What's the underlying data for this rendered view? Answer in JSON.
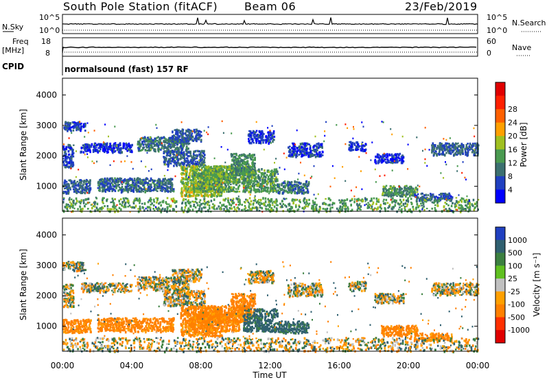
{
  "header": {
    "station": "South Pole Station (fitACF)",
    "beam": "Beam 06",
    "date": "23/Feb/2019"
  },
  "noise_panel": {
    "left_label": "N.Sky",
    "left_tick_top": "10^5",
    "left_tick_bottom": "10^0",
    "right_label": "N.Search",
    "right_tick_top": "10^5",
    "right_tick_bottom": "10^0"
  },
  "freq_panel": {
    "left_label_line1": "Freq",
    "left_label_line2": "[MHz]",
    "left_tick_top": "18",
    "left_tick_bottom": "8",
    "right_label": "Nave",
    "right_tick_top": "60",
    "right_tick_bottom": "0"
  },
  "cpid": {
    "label": "CPID",
    "value": "normalsound (fast) 157 RF"
  },
  "colors": {
    "power_scale": [
      "#0000ff",
      "#2040c0",
      "#3c7070",
      "#4a9a50",
      "#a0c020",
      "#ffa000",
      "#ff6000",
      "#ff2000",
      "#e00000"
    ],
    "velocity_scale": [
      "#2040c0",
      "#306070",
      "#3c8040",
      "#60c020",
      "#c0c0c0",
      "#ffa000",
      "#ff8000",
      "#ff3000",
      "#e00000"
    ]
  },
  "chart_data": [
    {
      "type": "heatmap",
      "name": "power",
      "ylabel": "Slant Range [km]",
      "ylim": [
        180,
        4550
      ],
      "yticks": [
        "1000",
        "2000",
        "3000",
        "4000"
      ],
      "xlim": [
        "00:00",
        "24:00"
      ],
      "colorbar": {
        "label": "Power [dB]",
        "range": [
          0,
          32
        ],
        "ticks": [
          "4",
          "8",
          "12",
          "16",
          "20",
          "24",
          "28"
        ]
      },
      "regions": [
        {
          "t": [
            0.0,
            1.3
          ],
          "r": [
            2850,
            3150
          ],
          "level": 6
        },
        {
          "t": [
            0.0,
            0.6
          ],
          "r": [
            1650,
            2400
          ],
          "level": 6
        },
        {
          "t": [
            0.0,
            1.6
          ],
          "r": [
            800,
            1250
          ],
          "level": 8
        },
        {
          "t": [
            1.0,
            4.0
          ],
          "r": [
            2150,
            2450
          ],
          "level": 5
        },
        {
          "t": [
            2.0,
            6.4
          ],
          "r": [
            850,
            1300
          ],
          "level": 9
        },
        {
          "t": [
            4.3,
            7.3
          ],
          "r": [
            2200,
            2650
          ],
          "level": 10
        },
        {
          "t": [
            6.3,
            8.0
          ],
          "r": [
            2500,
            2900
          ],
          "level": 8
        },
        {
          "t": [
            5.8,
            8.2
          ],
          "r": [
            1700,
            2200
          ],
          "level": 8
        },
        {
          "t": [
            6.8,
            9.2
          ],
          "r": [
            700,
            1700
          ],
          "level": 17
        },
        {
          "t": [
            7.5,
            10.2
          ],
          "r": [
            850,
            1500
          ],
          "level": 14
        },
        {
          "t": [
            8.2,
            10.8
          ],
          "r": [
            1150,
            1700
          ],
          "level": 15
        },
        {
          "t": [
            9.7,
            11.1
          ],
          "r": [
            1400,
            2100
          ],
          "level": 12
        },
        {
          "t": [
            10.4,
            12.4
          ],
          "r": [
            850,
            1600
          ],
          "level": 13
        },
        {
          "t": [
            10.7,
            12.2
          ],
          "r": [
            2450,
            2850
          ],
          "level": 6
        },
        {
          "t": [
            12.4,
            14.2
          ],
          "r": [
            800,
            1200
          ],
          "level": 10
        },
        {
          "t": [
            13.0,
            15.0
          ],
          "r": [
            2000,
            2450
          ],
          "level": 6
        },
        {
          "t": [
            16.5,
            17.5
          ],
          "r": [
            2200,
            2500
          ],
          "level": 5
        },
        {
          "t": [
            18.0,
            19.7
          ],
          "r": [
            1800,
            2100
          ],
          "level": 5
        },
        {
          "t": [
            18.4,
            20.5
          ],
          "r": [
            700,
            1050
          ],
          "level": 13
        },
        {
          "t": [
            20.3,
            22.5
          ],
          "r": [
            550,
            800
          ],
          "level": 7
        },
        {
          "t": [
            21.3,
            24.0
          ],
          "r": [
            2050,
            2450
          ],
          "level": 8
        },
        {
          "t": [
            0.0,
            24.0
          ],
          "r": [
            200,
            650
          ],
          "level": 14
        }
      ]
    },
    {
      "type": "heatmap",
      "name": "velocity",
      "ylabel": "Slant Range [km]",
      "ylim": [
        180,
        4550
      ],
      "yticks": [
        "1000",
        "2000",
        "3000",
        "4000"
      ],
      "xlim": [
        "00:00",
        "24:00"
      ],
      "xlabel": "Time UT",
      "xticks": [
        "00:00",
        "04:00",
        "08:00",
        "12:00",
        "16:00",
        "20:00",
        "00:00"
      ],
      "colorbar": {
        "label": "Velocity [m s⁻¹]",
        "ticks": [
          "1000",
          "500",
          "100",
          "25",
          "-25",
          "-100",
          "-500",
          "-1000"
        ]
      },
      "regions": [
        {
          "t": [
            0.0,
            1.3
          ],
          "r": [
            2850,
            3150
          ],
          "v": 0
        },
        {
          "t": [
            0.0,
            0.6
          ],
          "r": [
            1650,
            2400
          ],
          "v": 0
        },
        {
          "t": [
            0.0,
            1.6
          ],
          "r": [
            800,
            1250
          ],
          "v": -200
        },
        {
          "t": [
            1.0,
            4.0
          ],
          "r": [
            2150,
            2450
          ],
          "v": 0
        },
        {
          "t": [
            2.0,
            6.4
          ],
          "r": [
            850,
            1300
          ],
          "v": -200
        },
        {
          "t": [
            4.3,
            7.3
          ],
          "r": [
            2200,
            2650
          ],
          "v": 0
        },
        {
          "t": [
            6.3,
            8.0
          ],
          "r": [
            2500,
            2900
          ],
          "v": 0
        },
        {
          "t": [
            5.8,
            8.2
          ],
          "r": [
            1700,
            2200
          ],
          "v": 0
        },
        {
          "t": [
            6.8,
            9.2
          ],
          "r": [
            700,
            1700
          ],
          "v": -200
        },
        {
          "t": [
            7.5,
            10.2
          ],
          "r": [
            850,
            1500
          ],
          "v": -200
        },
        {
          "t": [
            8.2,
            10.8
          ],
          "r": [
            1150,
            1700
          ],
          "v": -200
        },
        {
          "t": [
            9.7,
            11.1
          ],
          "r": [
            1400,
            2100
          ],
          "v": -200
        },
        {
          "t": [
            10.4,
            12.4
          ],
          "r": [
            850,
            1600
          ],
          "v": 200
        },
        {
          "t": [
            10.7,
            12.2
          ],
          "r": [
            2450,
            2850
          ],
          "v": 0
        },
        {
          "t": [
            12.4,
            14.2
          ],
          "r": [
            800,
            1200
          ],
          "v": 200
        },
        {
          "t": [
            13.0,
            15.0
          ],
          "r": [
            2000,
            2450
          ],
          "v": 0
        },
        {
          "t": [
            16.5,
            17.5
          ],
          "r": [
            2200,
            2500
          ],
          "v": 0
        },
        {
          "t": [
            18.0,
            19.7
          ],
          "r": [
            1800,
            2100
          ],
          "v": 0
        },
        {
          "t": [
            18.4,
            20.5
          ],
          "r": [
            700,
            1050
          ],
          "v": -200
        },
        {
          "t": [
            20.3,
            22.5
          ],
          "r": [
            550,
            800
          ],
          "v": -200
        },
        {
          "t": [
            21.3,
            24.0
          ],
          "r": [
            2050,
            2450
          ],
          "v": 0
        },
        {
          "t": [
            0.0,
            24.0
          ],
          "r": [
            200,
            650
          ],
          "v": 0
        }
      ]
    }
  ]
}
